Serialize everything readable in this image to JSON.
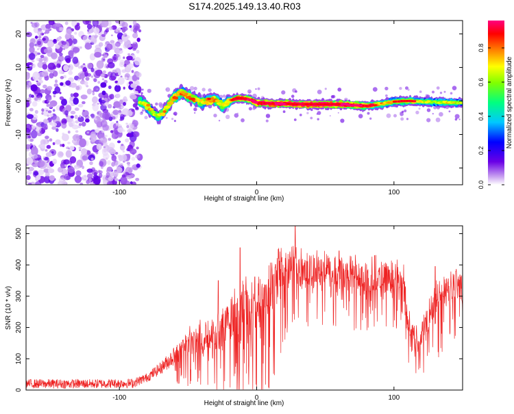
{
  "title": "S174.2025.149.13.40.R03",
  "chart_data": [
    {
      "type": "heatmap",
      "xlabel": "Height of straight line (km)",
      "ylabel": "Frequency (Hz)",
      "xlim": [
        -168,
        150
      ],
      "ylim": [
        -25,
        24
      ],
      "xticks": [
        -100,
        0,
        100
      ],
      "yticks": [
        -20,
        -10,
        0,
        10,
        20
      ],
      "colorbar": {
        "label": "Normalized spectral amplitude",
        "range": [
          0,
          0.96
        ],
        "ticks": [
          0.0,
          0.2,
          0.4,
          0.6,
          0.8
        ]
      },
      "noise_region_x": [
        -168,
        -85
      ],
      "ridge_points": [
        [
          -85,
          0.0,
          0.45
        ],
        [
          -80,
          -1.5,
          0.55
        ],
        [
          -76,
          -3.0,
          0.5
        ],
        [
          -72,
          -5.0,
          0.45
        ],
        [
          -68,
          -3.5,
          0.55
        ],
        [
          -64,
          -1.0,
          0.5
        ],
        [
          -60,
          1.0,
          0.6
        ],
        [
          -55,
          2.5,
          0.55
        ],
        [
          -50,
          1.5,
          0.6
        ],
        [
          -45,
          0.5,
          0.55
        ],
        [
          -40,
          -0.5,
          0.5
        ],
        [
          -35,
          0.0,
          0.6
        ],
        [
          -30,
          0.5,
          0.55
        ],
        [
          -25,
          -1.5,
          0.5
        ],
        [
          -20,
          0.0,
          0.55
        ],
        [
          -15,
          0.8,
          0.7
        ],
        [
          -10,
          0.8,
          0.75
        ],
        [
          -5,
          0.5,
          0.7
        ],
        [
          0,
          -0.5,
          0.8
        ],
        [
          10,
          -0.8,
          0.85
        ],
        [
          20,
          -0.8,
          0.8
        ],
        [
          30,
          -1.0,
          0.85
        ],
        [
          40,
          -1.0,
          0.9
        ],
        [
          50,
          -1.0,
          0.85
        ],
        [
          60,
          -1.0,
          0.8
        ],
        [
          70,
          -1.2,
          0.75
        ],
        [
          80,
          -1.5,
          0.7
        ],
        [
          90,
          -1.0,
          0.55
        ],
        [
          100,
          -0.2,
          0.5
        ],
        [
          110,
          0.0,
          0.6
        ],
        [
          120,
          -0.2,
          0.5
        ],
        [
          130,
          -0.3,
          0.45
        ],
        [
          140,
          -0.5,
          0.5
        ],
        [
          150,
          -0.5,
          0.45
        ]
      ]
    },
    {
      "type": "line",
      "xlabel": "Height of straight line (km)",
      "ylabel": "SNR (10 * v/v)",
      "xlim": [
        -168,
        150
      ],
      "ylim": [
        0,
        525
      ],
      "xticks": [
        -100,
        0,
        100
      ],
      "yticks": [
        0,
        100,
        200,
        300,
        400,
        500
      ],
      "color": "#ee2222",
      "envelope": [
        [
          -168,
          20,
          15
        ],
        [
          -120,
          20,
          15
        ],
        [
          -90,
          22,
          15
        ],
        [
          -80,
          40,
          15
        ],
        [
          -70,
          70,
          20
        ],
        [
          -60,
          110,
          30
        ],
        [
          -50,
          150,
          40
        ],
        [
          -40,
          160,
          50
        ],
        [
          -30,
          180,
          60
        ],
        [
          -20,
          210,
          70
        ],
        [
          -10,
          240,
          80
        ],
        [
          0,
          280,
          90
        ],
        [
          10,
          320,
          90
        ],
        [
          15,
          350,
          80
        ],
        [
          20,
          370,
          70
        ],
        [
          30,
          380,
          60
        ],
        [
          40,
          380,
          50
        ],
        [
          50,
          375,
          50
        ],
        [
          60,
          370,
          50
        ],
        [
          70,
          365,
          50
        ],
        [
          80,
          365,
          50
        ],
        [
          90,
          360,
          50
        ],
        [
          100,
          360,
          50
        ],
        [
          107,
          355,
          40
        ],
        [
          110,
          230,
          40
        ],
        [
          115,
          170,
          35
        ],
        [
          120,
          180,
          35
        ],
        [
          125,
          220,
          50
        ],
        [
          130,
          290,
          60
        ],
        [
          140,
          330,
          50
        ],
        [
          150,
          320,
          50
        ]
      ],
      "spikes": [
        [
          -12,
          455
        ],
        [
          -28,
          350
        ],
        [
          28,
          525
        ],
        [
          60,
          445
        ],
        [
          86,
          430
        ],
        [
          130,
          395
        ],
        [
          145,
          380
        ]
      ]
    }
  ]
}
